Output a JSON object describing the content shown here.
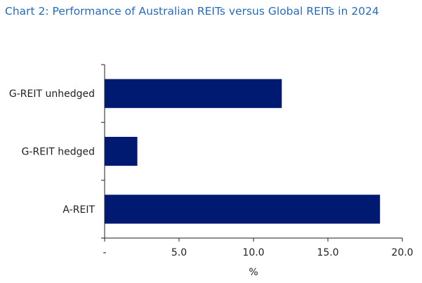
{
  "chart_data": {
    "type": "bar",
    "orientation": "horizontal",
    "title": "Chart 2: Performance of Australian REITs versus Global REITs in 2024",
    "categories": [
      "G-REIT unhedged",
      "G-REIT hedged",
      "A-REIT"
    ],
    "values": [
      11.9,
      2.2,
      18.5
    ],
    "xlabel": "%",
    "ylabel": "",
    "xlim": [
      0,
      20
    ],
    "xticks": [
      0,
      5,
      10,
      15,
      20
    ],
    "xtick_labels": [
      "-",
      "5.0",
      "10.0",
      "15.0",
      "20.0"
    ],
    "bar_color": "#001a72",
    "title_color": "#2a6ab0",
    "grid": false,
    "legend": "none"
  }
}
